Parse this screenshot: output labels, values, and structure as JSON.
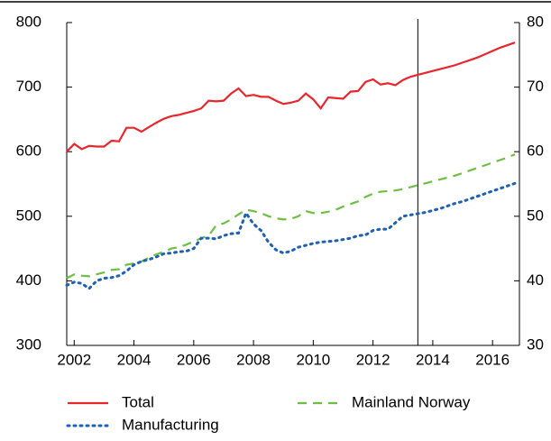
{
  "chart_data": {
    "type": "line",
    "x": [
      2001.75,
      2002,
      2002.25,
      2002.5,
      2002.75,
      2003,
      2003.25,
      2003.5,
      2003.75,
      2004,
      2004.25,
      2004.5,
      2004.75,
      2005,
      2005.25,
      2005.5,
      2005.75,
      2006,
      2006.25,
      2006.5,
      2006.75,
      2007,
      2007.25,
      2007.5,
      2007.75,
      2008,
      2008.25,
      2008.5,
      2008.75,
      2009,
      2009.25,
      2009.5,
      2009.75,
      2010,
      2010.25,
      2010.5,
      2010.75,
      2011,
      2011.25,
      2011.5,
      2011.75,
      2012,
      2012.25,
      2012.5,
      2012.75,
      2013,
      2013.25,
      2013.5,
      2013.75,
      2014,
      2014.25,
      2014.5,
      2014.75,
      2015,
      2015.25,
      2015.5,
      2015.75,
      2016,
      2016.25,
      2016.5,
      2016.75
    ],
    "series": [
      {
        "name": "Total",
        "color": "#e8262b",
        "dash": "solid",
        "values": [
          600,
          612,
          604,
          609,
          608,
          608,
          617,
          616,
          637,
          637,
          631,
          638,
          645,
          651,
          655,
          657,
          660,
          663,
          667,
          679,
          678,
          679,
          690,
          698,
          686,
          688,
          685,
          685,
          679,
          674,
          676,
          679,
          690,
          681,
          667,
          684,
          683,
          682,
          693,
          694,
          708,
          712,
          704,
          706,
          703,
          711,
          716,
          719,
          722,
          725,
          728,
          731,
          734,
          738,
          742,
          746,
          751,
          756,
          761,
          765,
          769
        ]
      },
      {
        "name": "Mainland Norway",
        "color": "#6dbf44",
        "dash": "dashed",
        "values": [
          404,
          410,
          408,
          407,
          410,
          413,
          417,
          418,
          425,
          427,
          430,
          436,
          441,
          445,
          450,
          452,
          456,
          461,
          466,
          470,
          486,
          489,
          495,
          503,
          510,
          508,
          505,
          500,
          497,
          495,
          496,
          500,
          508,
          505,
          505,
          507,
          510,
          515,
          519,
          523,
          530,
          535,
          538,
          539,
          540,
          542,
          545,
          548,
          551,
          554,
          557,
          560,
          563,
          567,
          571,
          575,
          579,
          583,
          587,
          591,
          596
        ]
      },
      {
        "name": "Manufacturing",
        "color": "#1f5fb4",
        "dash": "dotted",
        "values": [
          393,
          398,
          396,
          388,
          400,
          404,
          405,
          408,
          415,
          425,
          430,
          433,
          437,
          442,
          443,
          445,
          446,
          450,
          466,
          466,
          465,
          470,
          473,
          474,
          505,
          488,
          478,
          460,
          448,
          443,
          446,
          452,
          455,
          458,
          460,
          461,
          462,
          464,
          466,
          470,
          471,
          478,
          480,
          480,
          490,
          500,
          502,
          504,
          506,
          509,
          512,
          516,
          520,
          523,
          527,
          531,
          535,
          539,
          543,
          547,
          551
        ]
      }
    ],
    "xlim": [
      2001.75,
      2016.9
    ],
    "xticks": [
      2002,
      2004,
      2006,
      2008,
      2010,
      2012,
      2014,
      2016
    ],
    "ylim": [
      300,
      800
    ],
    "yticks": [
      300,
      400,
      500,
      600,
      700,
      800
    ],
    "y2lim": [
      30,
      80
    ],
    "y2ticks": [
      30,
      40,
      50,
      60,
      70,
      80
    ],
    "vline": 2013.5,
    "legend": "bottom"
  }
}
